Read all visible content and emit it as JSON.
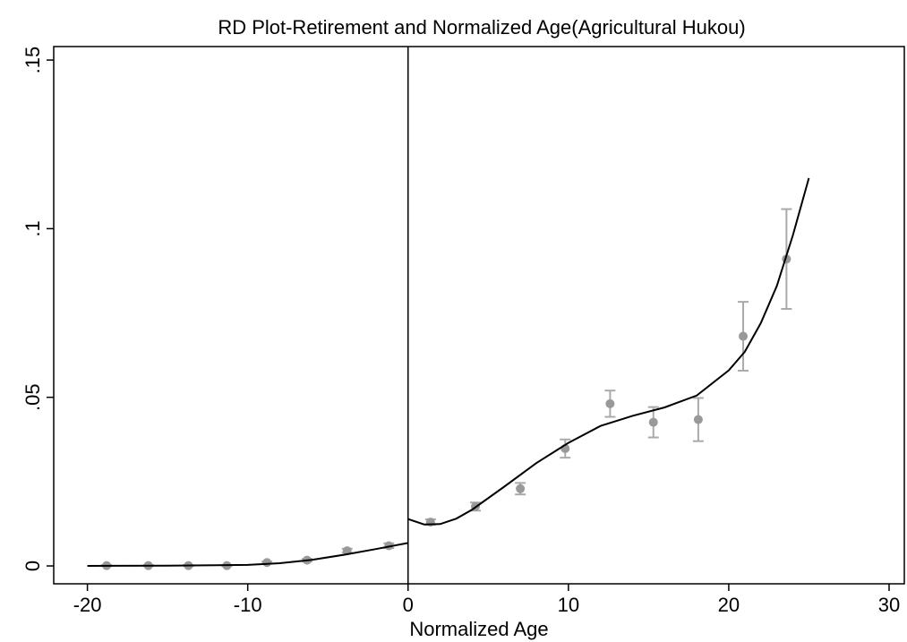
{
  "chart_data": {
    "type": "scatter",
    "title": "RD Plot-Retirement and Normalized Age(Agricultural Hukou)",
    "x_label": "Normalized Age",
    "xlim": [
      -22.1,
      30.95
    ],
    "xticks": [
      -20,
      -10,
      0,
      10,
      20,
      30
    ],
    "ylim": [
      -0.0053,
      0.154
    ],
    "yticks": [
      0,
      {
        "value": 0.05,
        "label": ".05"
      },
      {
        "value": 0.1,
        "label": ".1"
      },
      {
        "value": 0.15,
        "label": ".15"
      }
    ],
    "cutoff": 0,
    "series": [
      {
        "color": "#999999",
        "x": [
          -18.8,
          -16.2,
          -13.7,
          -11.3,
          -8.8,
          -6.3,
          -3.8,
          -1.2,
          1.4,
          4.2,
          7.0,
          9.8,
          12.6,
          15.3,
          18.1,
          20.9,
          23.6
        ],
        "values": [
          0.0001,
          0.0001,
          0.0001,
          0.0001,
          0.001,
          0.0017,
          0.0045,
          0.006,
          0.013,
          0.0176,
          0.0229,
          0.0348,
          0.0481,
          0.0426,
          0.0434,
          0.0681,
          0.091
        ],
        "error": [
          0.0002,
          0.0002,
          0.0002,
          0.0002,
          0.0003,
          0.0004,
          0.0006,
          0.0007,
          0.0008,
          0.0012,
          0.0017,
          0.0027,
          0.0039,
          0.0045,
          0.0064,
          0.0102,
          0.0148
        ]
      }
    ],
    "fits": [
      {
        "color": "#000000",
        "x": [
          -20,
          -15,
          -10,
          -8,
          -6,
          -4,
          -2,
          0
        ],
        "values": [
          0,
          0.0001,
          0.0003,
          0.0008,
          0.0018,
          0.0033,
          0.005,
          0.0068
        ]
      },
      {
        "color": "#000000",
        "x": [
          0,
          1,
          2,
          3,
          4,
          6,
          8,
          10,
          12,
          14,
          16,
          18,
          20,
          21,
          22,
          23,
          24,
          25
        ],
        "values": [
          0.0139,
          0.0123,
          0.0124,
          0.014,
          0.0167,
          0.0235,
          0.0305,
          0.0365,
          0.0415,
          0.0445,
          0.047,
          0.0505,
          0.058,
          0.0635,
          0.072,
          0.083,
          0.098,
          0.115
        ]
      }
    ]
  }
}
